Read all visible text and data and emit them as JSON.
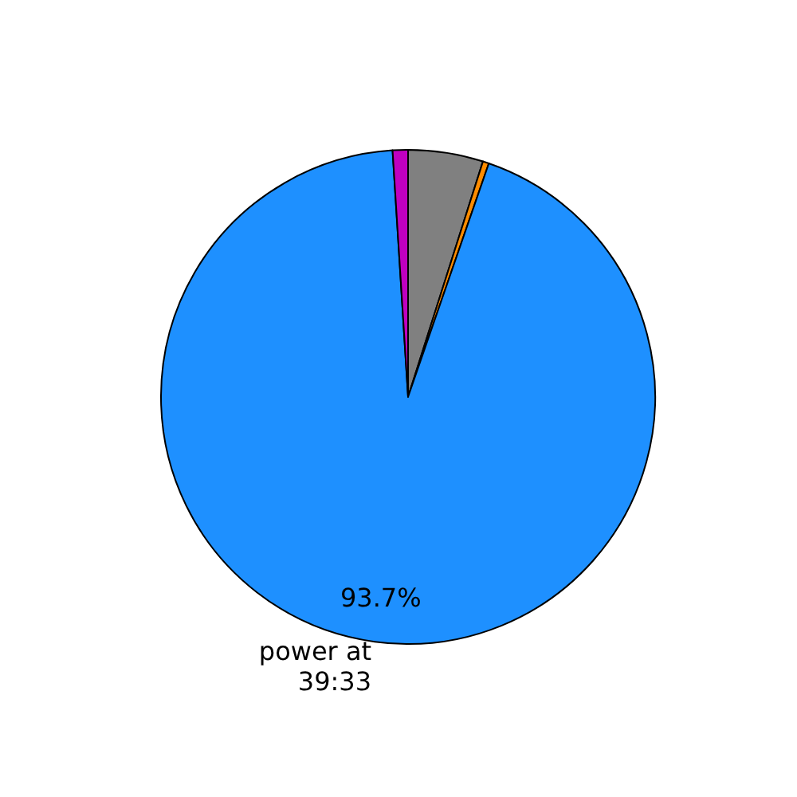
{
  "chart_data": {
    "type": "pie",
    "categories": [
      null,
      null,
      "power at\n39:33",
      null
    ],
    "values": [
      4.9,
      0.4,
      93.7,
      1.0
    ],
    "colors": [
      "#808080",
      "#ff8c00",
      "#1e90ff",
      "#c000c0"
    ],
    "value_labels": [
      null,
      null,
      "93.7%",
      null
    ],
    "legend": false
  }
}
